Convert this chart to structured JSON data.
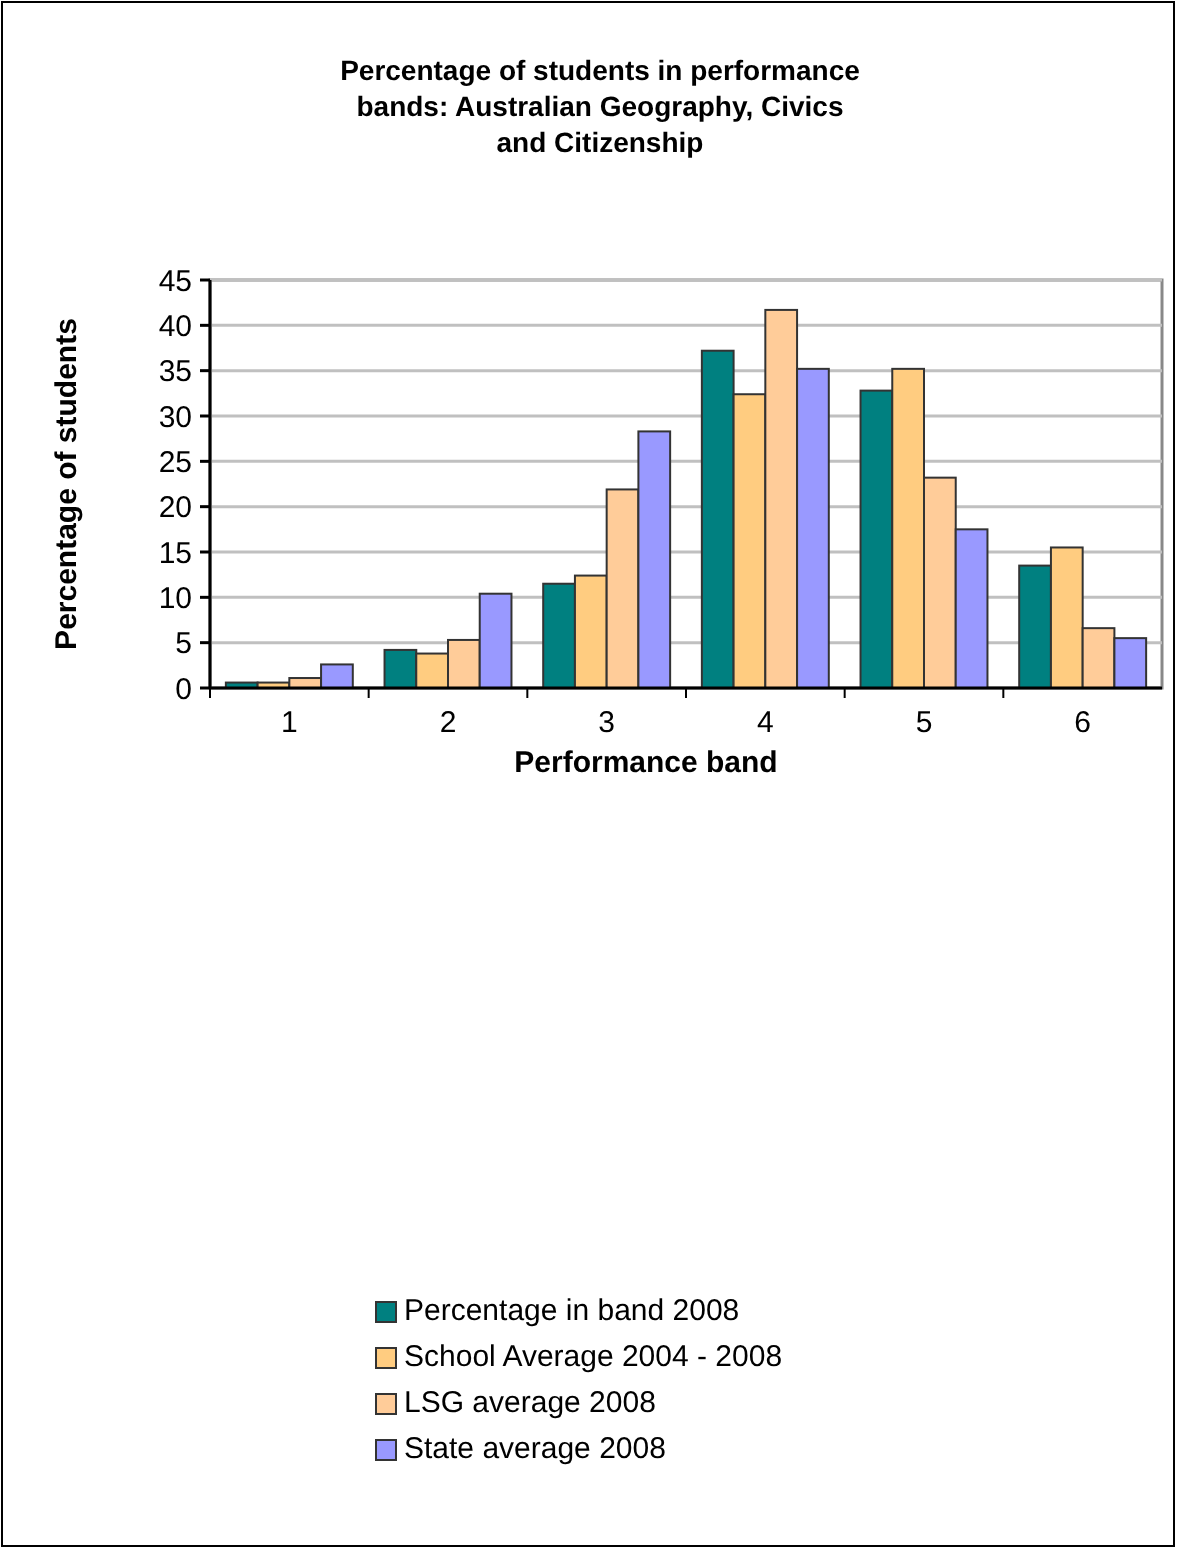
{
  "chart_data": {
    "type": "bar",
    "title": "Percentage of students in performance bands: Australian Geography, Civics and Citizenship",
    "xlabel": "Performance band",
    "ylabel": "Percentage of students",
    "categories": [
      "1",
      "2",
      "3",
      "4",
      "5",
      "6"
    ],
    "series": [
      {
        "name": "Percentage in band 2008",
        "color": "#008080",
        "values": [
          0.6,
          4.2,
          11.5,
          37.2,
          32.8,
          13.5
        ]
      },
      {
        "name": "School Average 2004 - 2008",
        "color": "#ffcc80",
        "values": [
          0.6,
          3.8,
          12.4,
          32.4,
          35.2,
          15.5
        ]
      },
      {
        "name": "LSG average 2008",
        "color": "#ffcc99",
        "values": [
          1.1,
          5.3,
          21.9,
          41.7,
          23.2,
          6.6
        ]
      },
      {
        "name": "State average 2008",
        "color": "#9999ff",
        "values": [
          2.6,
          10.4,
          28.3,
          35.2,
          17.5,
          5.5
        ]
      }
    ],
    "ylim": [
      0,
      45
    ],
    "yticks": [
      0,
      5,
      10,
      15,
      20,
      25,
      30,
      35,
      40,
      45
    ],
    "grid": "y",
    "legend": "bottom"
  }
}
